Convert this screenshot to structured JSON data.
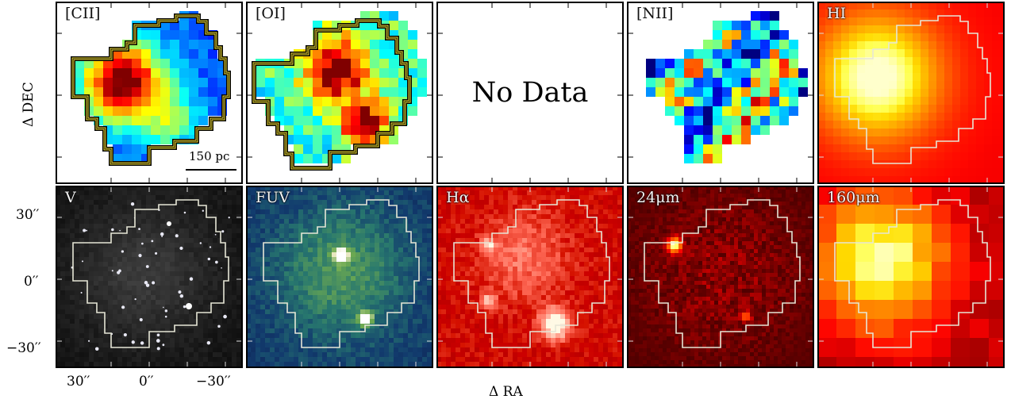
{
  "figure": {
    "y_axis_label": "Δ DEC",
    "x_axis_label": "Δ RA",
    "y_tick_labels": [
      "30′′",
      "0′′",
      "−30′′"
    ],
    "x_tick_labels": [
      "30′′",
      "0′′",
      "−30′′"
    ],
    "scale_bar_label": "150 pc"
  },
  "panels": [
    {
      "label": "[CII]",
      "colormap": "jet",
      "background": "#ffffff"
    },
    {
      "label": "[OI]",
      "colormap": "jet",
      "background": "#ffffff"
    },
    {
      "label": "",
      "no_data_text": "No Data",
      "background": "#ffffff"
    },
    {
      "label": "[NII]",
      "colormap": "jet",
      "background": "#ffffff"
    },
    {
      "label": "HI",
      "colormap": "hot",
      "background": "#e2200a"
    },
    {
      "label": "V",
      "colormap": "gray",
      "background": "#101010"
    },
    {
      "label": "FUV",
      "colormap": "cubehelix",
      "background": "#0c1c4e"
    },
    {
      "label": "Hα",
      "colormap": "red",
      "background": "#a8221c"
    },
    {
      "label": "24μm",
      "colormap": "hot",
      "background": "#2a0704"
    },
    {
      "label": "160μm",
      "colormap": "hot",
      "background": "#7a1006"
    }
  ],
  "colors": {
    "contour_outline": "#e6e6d6",
    "contour_yellow": "#f3e033",
    "frame": "#000000"
  }
}
